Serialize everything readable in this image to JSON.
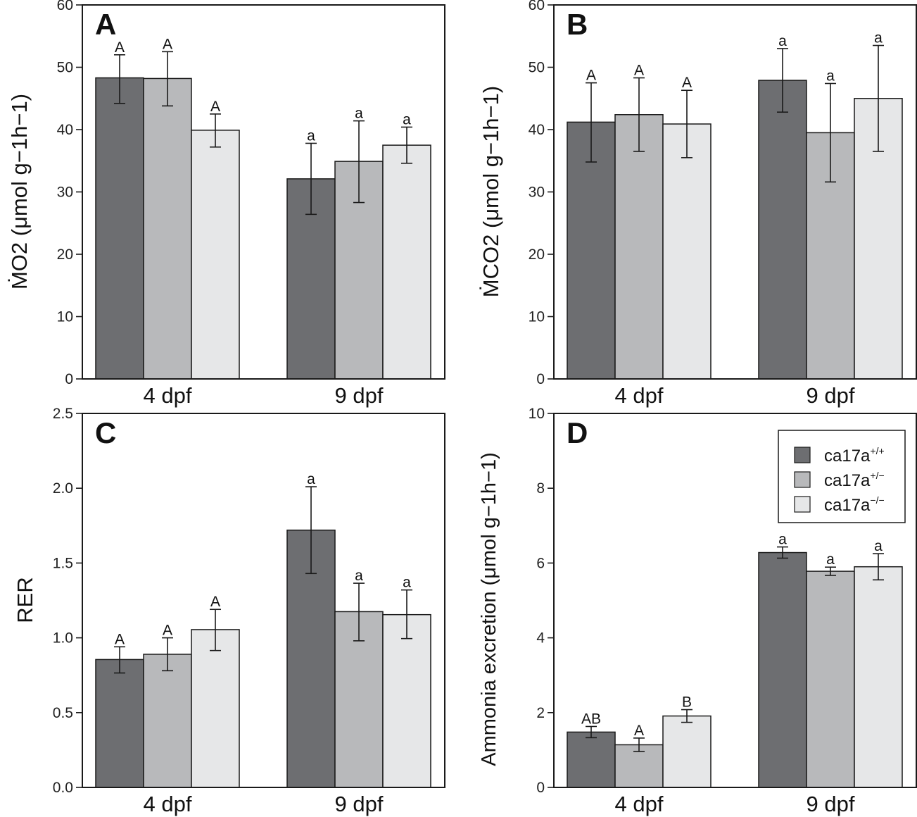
{
  "colors": {
    "ca17a_pp": "#6d6e71",
    "ca17a_pm": "#b8b9bb",
    "ca17a_mm": "#e6e7e8",
    "stroke": "#1a1a1a"
  },
  "legend": {
    "items": [
      {
        "base": "ca17a",
        "sup": "+/+"
      },
      {
        "base": "ca17a",
        "sup": "+/−"
      },
      {
        "base": "ca17a",
        "sup": "−/−"
      }
    ]
  },
  "chart_data": [
    {
      "type": "bar",
      "panel": "A",
      "ylabel": "ṀO2 (μmol g−1h−1)",
      "ylim": [
        0,
        60
      ],
      "yticks": [
        "0",
        "10",
        "20",
        "30",
        "40",
        "50",
        "60"
      ],
      "categories": [
        "4 dpf",
        "9 dpf"
      ],
      "series": [
        {
          "values": [
            48.3,
            32.1
          ],
          "err_low": [
            44.2,
            26.4
          ],
          "err_high": [
            52.0,
            37.8
          ],
          "sig": [
            "A",
            "a"
          ]
        },
        {
          "values": [
            48.2,
            34.9
          ],
          "err_low": [
            43.8,
            28.3
          ],
          "err_high": [
            52.5,
            41.4
          ],
          "sig": [
            "A",
            "a"
          ]
        },
        {
          "values": [
            39.9,
            37.5
          ],
          "err_low": [
            37.2,
            34.6
          ],
          "err_high": [
            42.5,
            40.4
          ],
          "sig": [
            "A",
            "a"
          ]
        }
      ]
    },
    {
      "type": "bar",
      "panel": "B",
      "ylabel": "ṀCO2 (μmol g−1h−1)",
      "ylim": [
        0,
        60
      ],
      "yticks": [
        "0",
        "10",
        "20",
        "30",
        "40",
        "50",
        "60"
      ],
      "categories": [
        "4 dpf",
        "9 dpf"
      ],
      "series": [
        {
          "values": [
            41.2,
            47.9
          ],
          "err_low": [
            34.8,
            42.8
          ],
          "err_high": [
            47.5,
            53.0
          ],
          "sig": [
            "A",
            "a"
          ]
        },
        {
          "values": [
            42.4,
            39.5
          ],
          "err_low": [
            36.5,
            31.6
          ],
          "err_high": [
            48.3,
            47.4
          ],
          "sig": [
            "A",
            "a"
          ]
        },
        {
          "values": [
            40.9,
            45.0
          ],
          "err_low": [
            35.5,
            36.5
          ],
          "err_high": [
            46.3,
            53.5
          ],
          "sig": [
            "A",
            "a"
          ]
        }
      ]
    },
    {
      "type": "bar",
      "panel": "C",
      "ylabel": "RER",
      "ylim": [
        0,
        2.5
      ],
      "yticks": [
        "0.0",
        "0.5",
        "1.0",
        "1.5",
        "2.0",
        "2.5"
      ],
      "categories": [
        "4 dpf",
        "9 dpf"
      ],
      "series": [
        {
          "values": [
            0.855,
            1.72
          ],
          "err_low": [
            0.765,
            1.43
          ],
          "err_high": [
            0.94,
            2.01
          ],
          "sig": [
            "A",
            "a"
          ]
        },
        {
          "values": [
            0.89,
            1.175
          ],
          "err_low": [
            0.78,
            0.98
          ],
          "err_high": [
            1.0,
            1.365
          ],
          "sig": [
            "A",
            "a"
          ]
        },
        {
          "values": [
            1.055,
            1.155
          ],
          "err_low": [
            0.915,
            0.995
          ],
          "err_high": [
            1.19,
            1.32
          ],
          "sig": [
            "A",
            "a"
          ]
        }
      ]
    },
    {
      "type": "bar",
      "panel": "D",
      "ylabel": "Ammonia excretion (μmol g−1h−1)",
      "ylim": [
        0,
        10
      ],
      "yticks": [
        "0",
        "2",
        "4",
        "6",
        "8",
        "10"
      ],
      "categories": [
        "4 dpf",
        "9 dpf"
      ],
      "legend": "top-right",
      "series": [
        {
          "values": [
            1.48,
            6.28
          ],
          "err_low": [
            1.33,
            6.13
          ],
          "err_high": [
            1.63,
            6.43
          ],
          "sig": [
            "AB",
            "a"
          ]
        },
        {
          "values": [
            1.14,
            5.78
          ],
          "err_low": [
            0.96,
            5.67
          ],
          "err_high": [
            1.32,
            5.89
          ],
          "sig": [
            "A",
            "a"
          ]
        },
        {
          "values": [
            1.91,
            5.9
          ],
          "err_low": [
            1.74,
            5.55
          ],
          "err_high": [
            2.08,
            6.25
          ],
          "sig": [
            "B",
            "a"
          ]
        }
      ]
    }
  ]
}
